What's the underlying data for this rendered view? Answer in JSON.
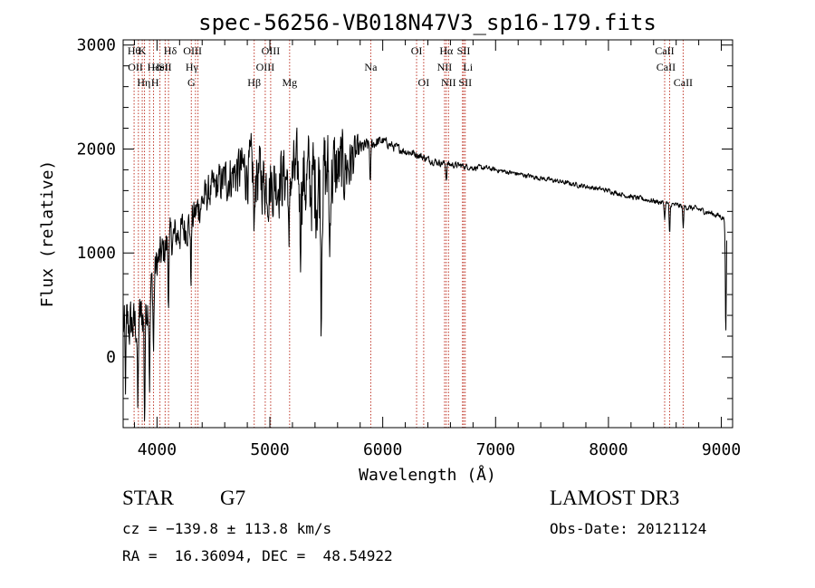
{
  "chart_data": {
    "type": "line",
    "title": "spec-56256-VB018N47V3_sp16-179.fits",
    "xlabel": "Wavelength (Å)",
    "ylabel": "Flux (relative)",
    "xlim": [
      3700,
      9100
    ],
    "ylim": [
      -680,
      3050
    ],
    "x_ticks": [
      4000,
      5000,
      6000,
      7000,
      8000,
      9000
    ],
    "x_tick_labels": [
      "4000",
      "5000",
      "6000",
      "7000",
      "8000",
      "9000"
    ],
    "y_ticks": [
      0,
      1000,
      2000,
      3000
    ],
    "y_tick_labels": [
      "0",
      "1000",
      "2000",
      "3000"
    ],
    "grid": false,
    "series": [
      {
        "name": "flux",
        "continuum": {
          "x": [
            3700,
            3800,
            3900,
            4000,
            4100,
            4200,
            4300,
            4400,
            4500,
            4600,
            4700,
            4800,
            4900,
            5000,
            5100,
            5200,
            5300,
            5400,
            5500,
            5600,
            5700,
            5800,
            5900,
            6000,
            6100,
            6200,
            6300,
            6400,
            6500,
            6600,
            6700,
            6800,
            6900,
            7000,
            7200,
            7400,
            7600,
            7800,
            8000,
            8200,
            8400,
            8600,
            8800,
            9000,
            9050
          ],
          "y": [
            300,
            300,
            450,
            900,
            1100,
            1200,
            1300,
            1500,
            1620,
            1700,
            1780,
            1800,
            1750,
            1650,
            1720,
            1750,
            1700,
            1650,
            1750,
            1780,
            1850,
            2000,
            2050,
            2080,
            2020,
            1980,
            1950,
            1900,
            1870,
            1850,
            1840,
            1820,
            1820,
            1800,
            1760,
            1720,
            1680,
            1640,
            1600,
            1540,
            1500,
            1460,
            1420,
            1350,
            1300
          ]
        },
        "noise_amplitude": {
          "x": [
            3700,
            4000,
            4500,
            4800,
            5000,
            5200,
            5400,
            5500,
            5700,
            5800,
            6000,
            7000,
            8000,
            9050
          ],
          "y": [
            420,
            300,
            260,
            450,
            500,
            500,
            800,
            700,
            500,
            130,
            70,
            35,
            35,
            45
          ]
        },
        "absorption_dips": [
          {
            "x": 3720,
            "depth": 600
          },
          {
            "x": 3830,
            "depth": 900
          },
          {
            "x": 3890,
            "depth": 1000
          },
          {
            "x": 3934,
            "depth": 800
          },
          {
            "x": 3969,
            "depth": 700
          },
          {
            "x": 4102,
            "depth": 500
          },
          {
            "x": 4300,
            "depth": 550
          },
          {
            "x": 4861,
            "depth": 700
          },
          {
            "x": 5170,
            "depth": 900
          },
          {
            "x": 5270,
            "depth": 600
          },
          {
            "x": 5455,
            "depth": 1150
          },
          {
            "x": 5530,
            "depth": 800
          },
          {
            "x": 5890,
            "depth": 400
          },
          {
            "x": 6563,
            "depth": 150
          },
          {
            "x": 8498,
            "depth": 150
          },
          {
            "x": 8542,
            "depth": 300
          },
          {
            "x": 8662,
            "depth": 200
          },
          {
            "x": 9040,
            "depth": 1100
          }
        ]
      }
    ],
    "lines": [
      {
        "x": 3797,
        "label": "Hθ",
        "row": 0,
        "dx": 0
      },
      {
        "x": 3835,
        "label": "Hη",
        "row": 2,
        "dx": 6
      },
      {
        "x": 3869,
        "label": "K",
        "row": 0,
        "dx": 0
      },
      {
        "x": 3889,
        "label": "OII",
        "row": 1,
        "dx": -10
      },
      {
        "x": 3934,
        "label": "H",
        "row": 2,
        "dx": 6
      },
      {
        "x": 3969,
        "label": "Hε",
        "row": 1,
        "dx": 0
      },
      {
        "x": 4026,
        "label": "HeI",
        "row": 1,
        "dx": 0
      },
      {
        "x": 4072,
        "label": "SII",
        "row": 1,
        "dx": 0
      },
      {
        "x": 4102,
        "label": "Hδ",
        "row": 0,
        "dx": 2
      },
      {
        "x": 4304,
        "label": "G",
        "row": 2,
        "dx": 0
      },
      {
        "x": 4341,
        "label": "Hγ",
        "row": 1,
        "dx": -4
      },
      {
        "x": 4363,
        "label": "OIII",
        "row": 0,
        "dx": -6
      },
      {
        "x": 4861,
        "label": "Hβ",
        "row": 2,
        "dx": 0
      },
      {
        "x": 4959,
        "label": "OIII",
        "row": 1,
        "dx": 0
      },
      {
        "x": 5007,
        "label": "OIII",
        "row": 0,
        "dx": 0
      },
      {
        "x": 5175,
        "label": "Mg",
        "row": 2,
        "dx": 0
      },
      {
        "x": 5894,
        "label": "Na",
        "row": 1,
        "dx": 0
      },
      {
        "x": 6300,
        "label": "OI",
        "row": 0,
        "dx": 0
      },
      {
        "x": 6363,
        "label": "OI",
        "row": 2,
        "dx": 0
      },
      {
        "x": 6548,
        "label": "NII",
        "row": 1,
        "dx": 0
      },
      {
        "x": 6563,
        "label": "Hα",
        "row": 0,
        "dx": 0
      },
      {
        "x": 6583,
        "label": "NII",
        "row": 2,
        "dx": 0
      },
      {
        "x": 6707,
        "label": "Li",
        "row": 1,
        "dx": 6
      },
      {
        "x": 6717,
        "label": "SII",
        "row": 0,
        "dx": 0
      },
      {
        "x": 6731,
        "label": "SII",
        "row": 2,
        "dx": 0
      },
      {
        "x": 8498,
        "label": "CaII",
        "row": 0,
        "dx": 0
      },
      {
        "x": 8542,
        "label": "CaII",
        "row": 1,
        "dx": -4
      },
      {
        "x": 8662,
        "label": "CaII",
        "row": 2,
        "dx": 0
      }
    ],
    "colors": {
      "spectrum": "#000000",
      "marker_lines": "#c0392b"
    }
  },
  "info": {
    "object_class": "STAR",
    "subclass": "G7",
    "survey": "LAMOST DR3",
    "redshift": "cz = −139.8 ± 113.8 km/s",
    "obs_date": "Obs-Date: 20121124",
    "coords": "RA =  16.36094, DEC =  48.54922"
  }
}
